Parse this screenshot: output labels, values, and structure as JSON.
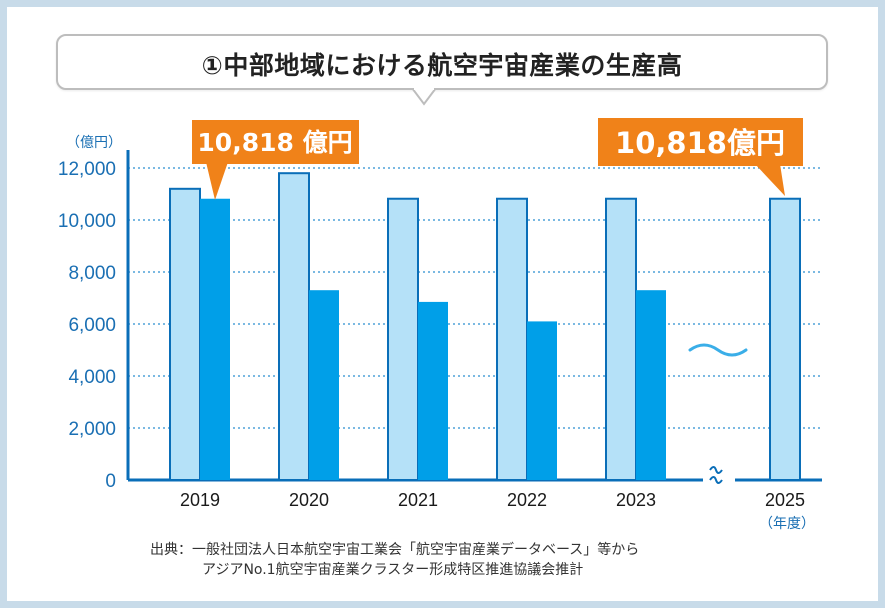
{
  "title": "①中部地域における航空宇宙産業の生産高",
  "chart_data": {
    "type": "bar",
    "unit_label": "（億円）",
    "x_unit_label": "（年度）",
    "categories": [
      "2019",
      "2020",
      "2021",
      "2022",
      "2023",
      "2025"
    ],
    "series": [
      {
        "color": "#b5e1f8",
        "values": [
          11200,
          11800,
          10818,
          10818,
          10818,
          10818
        ]
      },
      {
        "color": "#009fe8",
        "values": [
          10818,
          7300,
          6850,
          6100,
          7300,
          null
        ]
      }
    ],
    "ylim": [
      0,
      12000
    ],
    "yticks": [
      0,
      2000,
      4000,
      6000,
      8000,
      10000,
      12000
    ],
    "ytick_labels": [
      "0",
      "2,000",
      "4,000",
      "6,000",
      "8,000",
      "10,000",
      "12,000"
    ],
    "grid": true,
    "axis_break": "between 2023 and 2025",
    "annotations": [
      {
        "text": "10,818 億円",
        "target": "2019"
      },
      {
        "text": "10,818億円",
        "target": "2025"
      }
    ],
    "annotation_color": "#f08219"
  },
  "source": {
    "line1": "出典：一般社団法人日本航空宇宙工業会「航空宇宙産業データベース」等から",
    "line2": "アジアNo.1航空宇宙産業クラスター形成特区推進協議会推計"
  }
}
